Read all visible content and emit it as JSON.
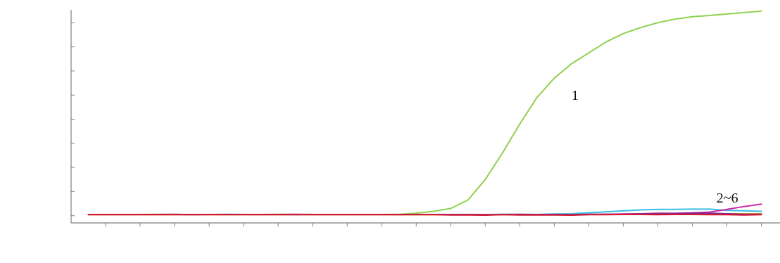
{
  "chart_data": {
    "type": "line",
    "title": "",
    "xlabel": "",
    "ylabel": "",
    "grid": false,
    "legend": "none",
    "x": [
      1,
      2,
      3,
      4,
      5,
      6,
      7,
      8,
      9,
      10,
      11,
      12,
      13,
      14,
      15,
      16,
      17,
      18,
      19,
      20,
      21,
      22,
      23,
      24,
      25,
      26,
      27,
      28,
      29,
      30,
      31,
      32,
      33,
      34,
      35,
      36,
      37,
      38,
      39,
      40
    ],
    "xlim": [
      0,
      41
    ],
    "ylim": [
      -0.3,
      8.3
    ],
    "series": [
      {
        "color": "#8fd14f",
        "values": [
          0.05,
          0.05,
          0.05,
          0.05,
          0.06,
          0.05,
          0.05,
          0.05,
          0.05,
          0.05,
          0.05,
          0.06,
          0.05,
          0.05,
          0.05,
          0.05,
          0.05,
          0.05,
          0.06,
          0.1,
          0.18,
          0.3,
          0.65,
          1.5,
          2.6,
          3.8,
          4.9,
          5.7,
          6.3,
          6.75,
          7.2,
          7.55,
          7.8,
          8.0,
          8.15,
          8.25,
          8.3,
          8.36,
          8.42,
          8.48
        ]
      },
      {
        "color": "#38bfe0",
        "values": [
          0.05,
          0.05,
          0.05,
          0.05,
          0.05,
          0.05,
          0.04,
          0.05,
          0.06,
          0.05,
          0.05,
          0.05,
          0.04,
          0.05,
          0.05,
          0.05,
          0.05,
          0.05,
          0.05,
          0.05,
          0.05,
          0.05,
          0.04,
          0.04,
          0.06,
          0.05,
          0.05,
          0.07,
          0.08,
          0.12,
          0.16,
          0.2,
          0.24,
          0.26,
          0.26,
          0.27,
          0.27,
          0.22,
          0.2,
          0.18
        ]
      },
      {
        "color": "#cc2aa8",
        "values": [
          0.05,
          0.05,
          0.05,
          0.05,
          0.05,
          0.06,
          0.04,
          0.05,
          0.05,
          0.05,
          0.05,
          0.05,
          0.06,
          0.05,
          0.05,
          0.05,
          0.05,
          0.05,
          0.04,
          0.05,
          0.05,
          0.05,
          0.04,
          0.03,
          0.05,
          0.04,
          0.05,
          0.04,
          0.03,
          0.05,
          0.06,
          0.07,
          0.08,
          0.1,
          0.1,
          0.12,
          0.15,
          0.26,
          0.38,
          0.48
        ]
      },
      {
        "color": "#e8a21a",
        "values": [
          0.04,
          0.04,
          0.04,
          0.04,
          0.04,
          0.04,
          0.05,
          0.04,
          0.04,
          0.04,
          0.04,
          0.04,
          0.05,
          0.04,
          0.04,
          0.04,
          0.04,
          0.04,
          0.04,
          0.04,
          0.04,
          0.04,
          0.04,
          0.04,
          0.04,
          0.04,
          0.04,
          0.04,
          0.04,
          0.05,
          0.05,
          0.05,
          0.06,
          0.06,
          0.06,
          0.06,
          0.07,
          0.08,
          0.08,
          0.08
        ]
      },
      {
        "color": "#7a2b8f",
        "values": [
          0.05,
          0.05,
          0.05,
          0.05,
          0.05,
          0.05,
          0.05,
          0.05,
          0.05,
          0.05,
          0.05,
          0.05,
          0.05,
          0.05,
          0.05,
          0.05,
          0.05,
          0.05,
          0.05,
          0.05,
          0.05,
          0.05,
          0.05,
          0.04,
          0.05,
          0.06,
          0.05,
          0.05,
          0.04,
          0.06,
          0.06,
          0.06,
          0.07,
          0.08,
          0.08,
          0.1,
          0.1,
          0.08,
          0.06,
          0.06
        ]
      },
      {
        "color": "#d8182f",
        "values": [
          0.04,
          0.04,
          0.04,
          0.04,
          0.04,
          0.04,
          0.04,
          0.04,
          0.04,
          0.04,
          0.04,
          0.04,
          0.04,
          0.04,
          0.04,
          0.04,
          0.04,
          0.04,
          0.04,
          0.04,
          0.04,
          0.03,
          0.03,
          0.02,
          0.04,
          0.03,
          0.03,
          0.03,
          0.02,
          0.04,
          0.04,
          0.05,
          0.05,
          0.04,
          0.05,
          0.05,
          0.04,
          0.04,
          0.03,
          0.04
        ]
      }
    ],
    "annotations": [
      {
        "text": "1",
        "x": 29,
        "y": 4.8
      },
      {
        "text": "2~6",
        "x": 37.4,
        "y": 0.55
      }
    ]
  }
}
